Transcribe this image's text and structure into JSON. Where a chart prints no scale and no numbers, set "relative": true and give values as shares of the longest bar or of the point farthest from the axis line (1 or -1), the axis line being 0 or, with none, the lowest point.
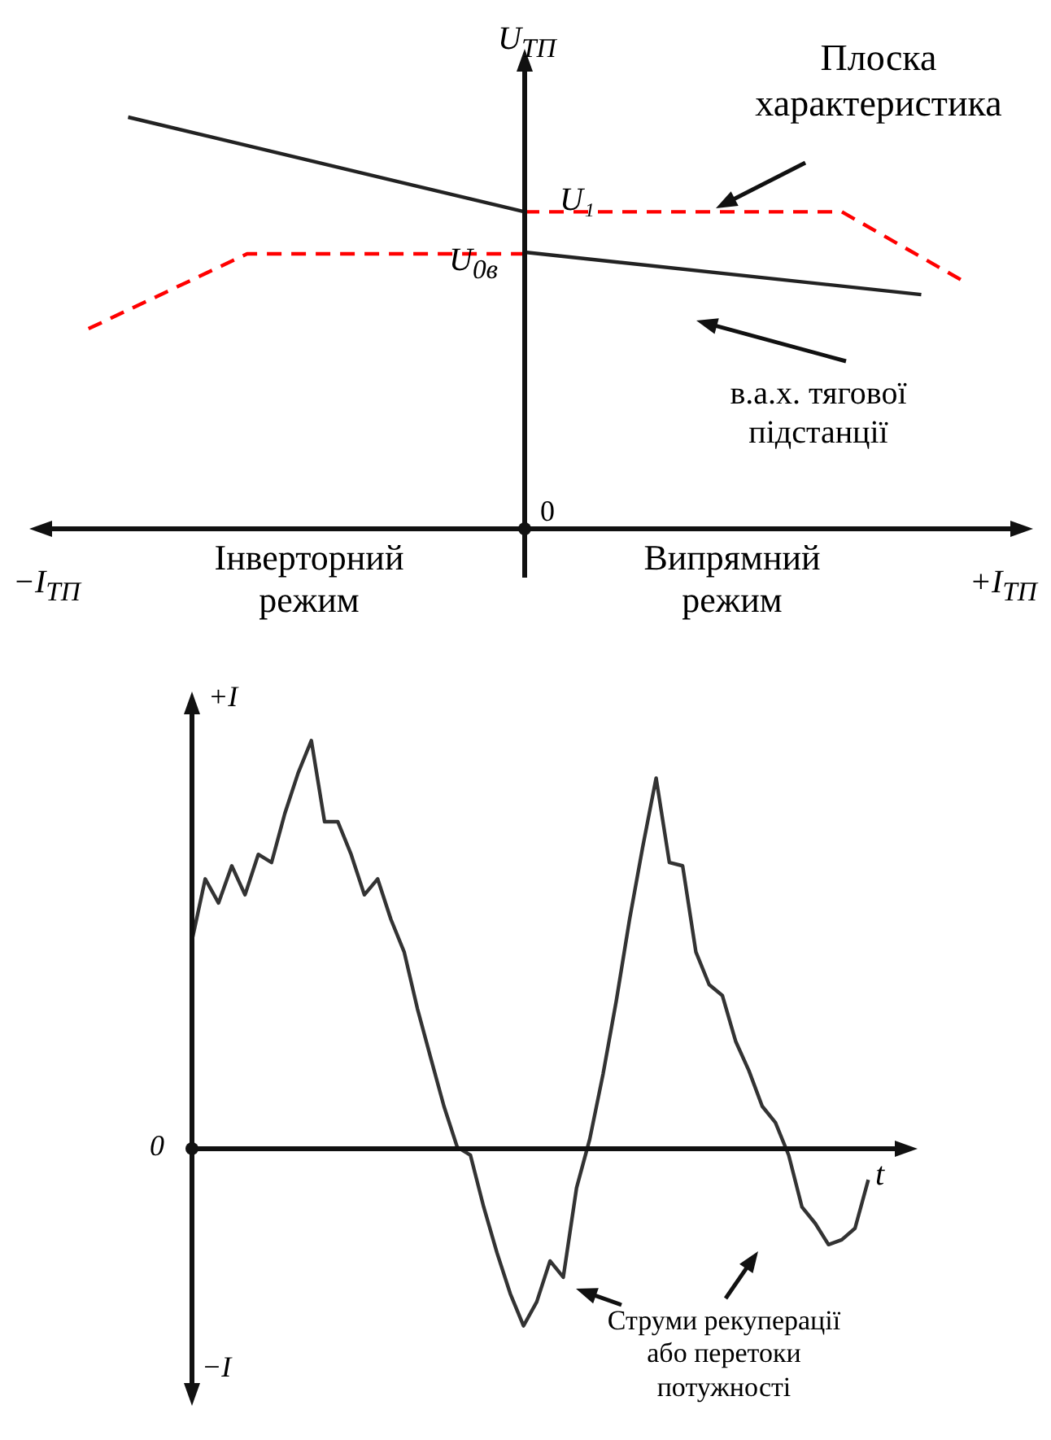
{
  "chart_data": [
    {
      "type": "line",
      "relative": true,
      "ylabel": "U$_{ТП}$",
      "marker": "none",
      "categories": [
        null,
        null,
        null,
        null,
        null,
        null,
        null,
        null,
        null,
        null,
        null,
        null,
        null,
        null,
        null,
        null,
        null,
        null,
        null,
        null,
        null,
        null,
        null,
        null,
        null
      ],
      "series": [
        {
          "color": "#222222",
          "values": [
            null,
            null,
            1,
            null,
            null,
            null,
            null,
            null,
            null,
            null,
            null,
            null,
            0.77,
            null,
            null,
            null,
            null,
            null,
            null,
            null,
            null,
            null,
            null,
            null,
            null
          ]
        },
        {
          "color": "#222222",
          "values": [
            null,
            null,
            null,
            null,
            null,
            null,
            null,
            null,
            null,
            null,
            null,
            null,
            0.672,
            null,
            null,
            null,
            null,
            null,
            null,
            null,
            null,
            null,
            0.569,
            null,
            null
          ]
        },
        {
          "color": "#ff0000",
          "line_style": "dashed",
          "values": [
            null,
            0.486,
            null,
            null,
            null,
            0.668,
            null,
            null,
            null,
            null,
            null,
            null,
            0.668,
            null,
            null,
            null,
            null,
            null,
            null,
            null,
            null,
            null,
            null,
            null,
            null
          ]
        },
        {
          "color": "#ff0000",
          "line_style": "dashed",
          "values": [
            null,
            null,
            null,
            null,
            null,
            null,
            null,
            null,
            null,
            null,
            null,
            null,
            0.77,
            null,
            null,
            null,
            null,
            null,
            null,
            null,
            0.77,
            null,
            null,
            0.605,
            null
          ]
        }
      ],
      "annotations": [
        "Плоска характеристика",
        "в.а.х. тягової підстанції",
        "U₁",
        "U$_{0в}$",
        "0",
        "−I$_{ТП}$",
        "+I$_{ТП}$",
        "Інверторний режим",
        "Випрямний режим"
      ]
    },
    {
      "type": "line",
      "relative": true,
      "xlabel": "t",
      "marker": "none",
      "categories": [
        null,
        null,
        null,
        null,
        null,
        null,
        null,
        null,
        null,
        null,
        null,
        null,
        null,
        null,
        null,
        null,
        null,
        null,
        null,
        null,
        null,
        null,
        null,
        null,
        null,
        null,
        null,
        null,
        null,
        null,
        null,
        null,
        null,
        null,
        null,
        null,
        null,
        null,
        null,
        null,
        null,
        null,
        null,
        null,
        null,
        null,
        null,
        null,
        null,
        null,
        null,
        null,
        null,
        null
      ],
      "series": [
        {
          "color": "#333333",
          "values": [
            0.51,
            0.661,
            0.602,
            0.693,
            0.622,
            0.721,
            0.701,
            0.821,
            0.92,
            1,
            0.801,
            0.801,
            0.721,
            0.622,
            0.661,
            0.562,
            0.482,
            0.343,
            0.223,
            0.104,
            0.004,
            -0.016,
            -0.143,
            -0.255,
            -0.355,
            -0.434,
            -0.375,
            -0.275,
            -0.315,
            -0.096,
            0.024,
            0.183,
            0.363,
            0.562,
            0.741,
            0.908,
            0.701,
            0.693,
            0.482,
            0.402,
            0.375,
            0.263,
            0.191,
            0.104,
            0.064,
            -0.016,
            -0.143,
            -0.183,
            -0.235,
            -0.223,
            -0.195,
            -0.076,
            null,
            null
          ]
        }
      ],
      "annotations": [
        "+I",
        "−I",
        "0",
        "Струми рекуперації або перетоки потужності"
      ]
    }
  ]
}
